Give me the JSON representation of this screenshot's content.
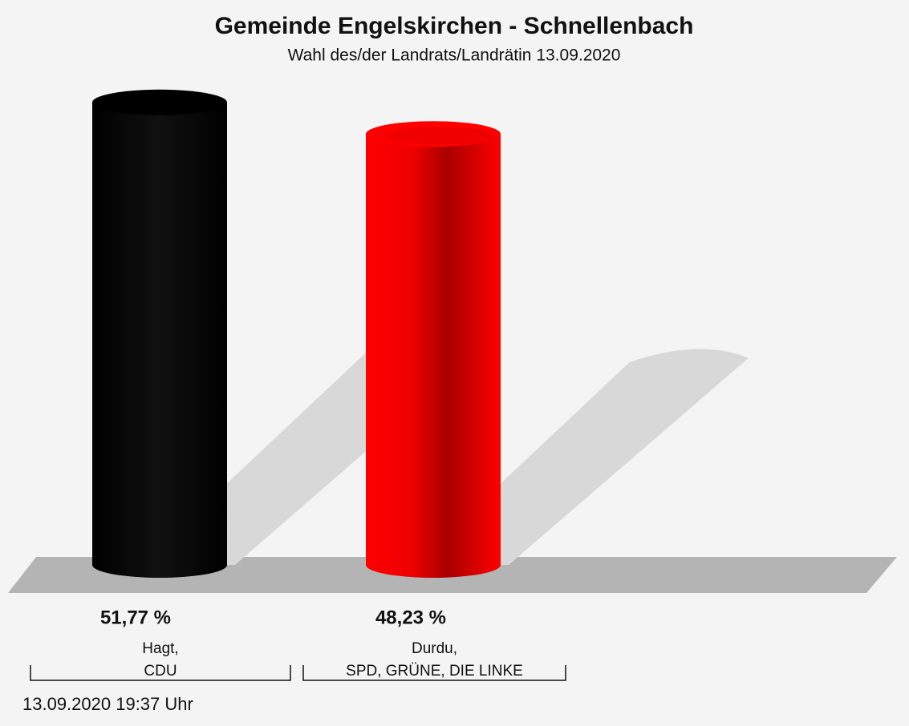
{
  "chart_data": {
    "type": "bar",
    "title": "Gemeinde Engelskirchen - Schnellenbach",
    "subtitle": "Wahl des/der Landrats/Landrätin 13.09.2020",
    "categories": [
      [
        "Hagt,",
        "CDU"
      ],
      [
        "Durdu,",
        "SPD, GRÜNE, DIE LINKE"
      ]
    ],
    "values": [
      51.77,
      48.23
    ],
    "value_labels": [
      "51,77 %",
      "48,23 %"
    ],
    "colors": [
      "#000000",
      "#ff0000"
    ],
    "footer": "13.09.2020 19:37 Uhr"
  }
}
